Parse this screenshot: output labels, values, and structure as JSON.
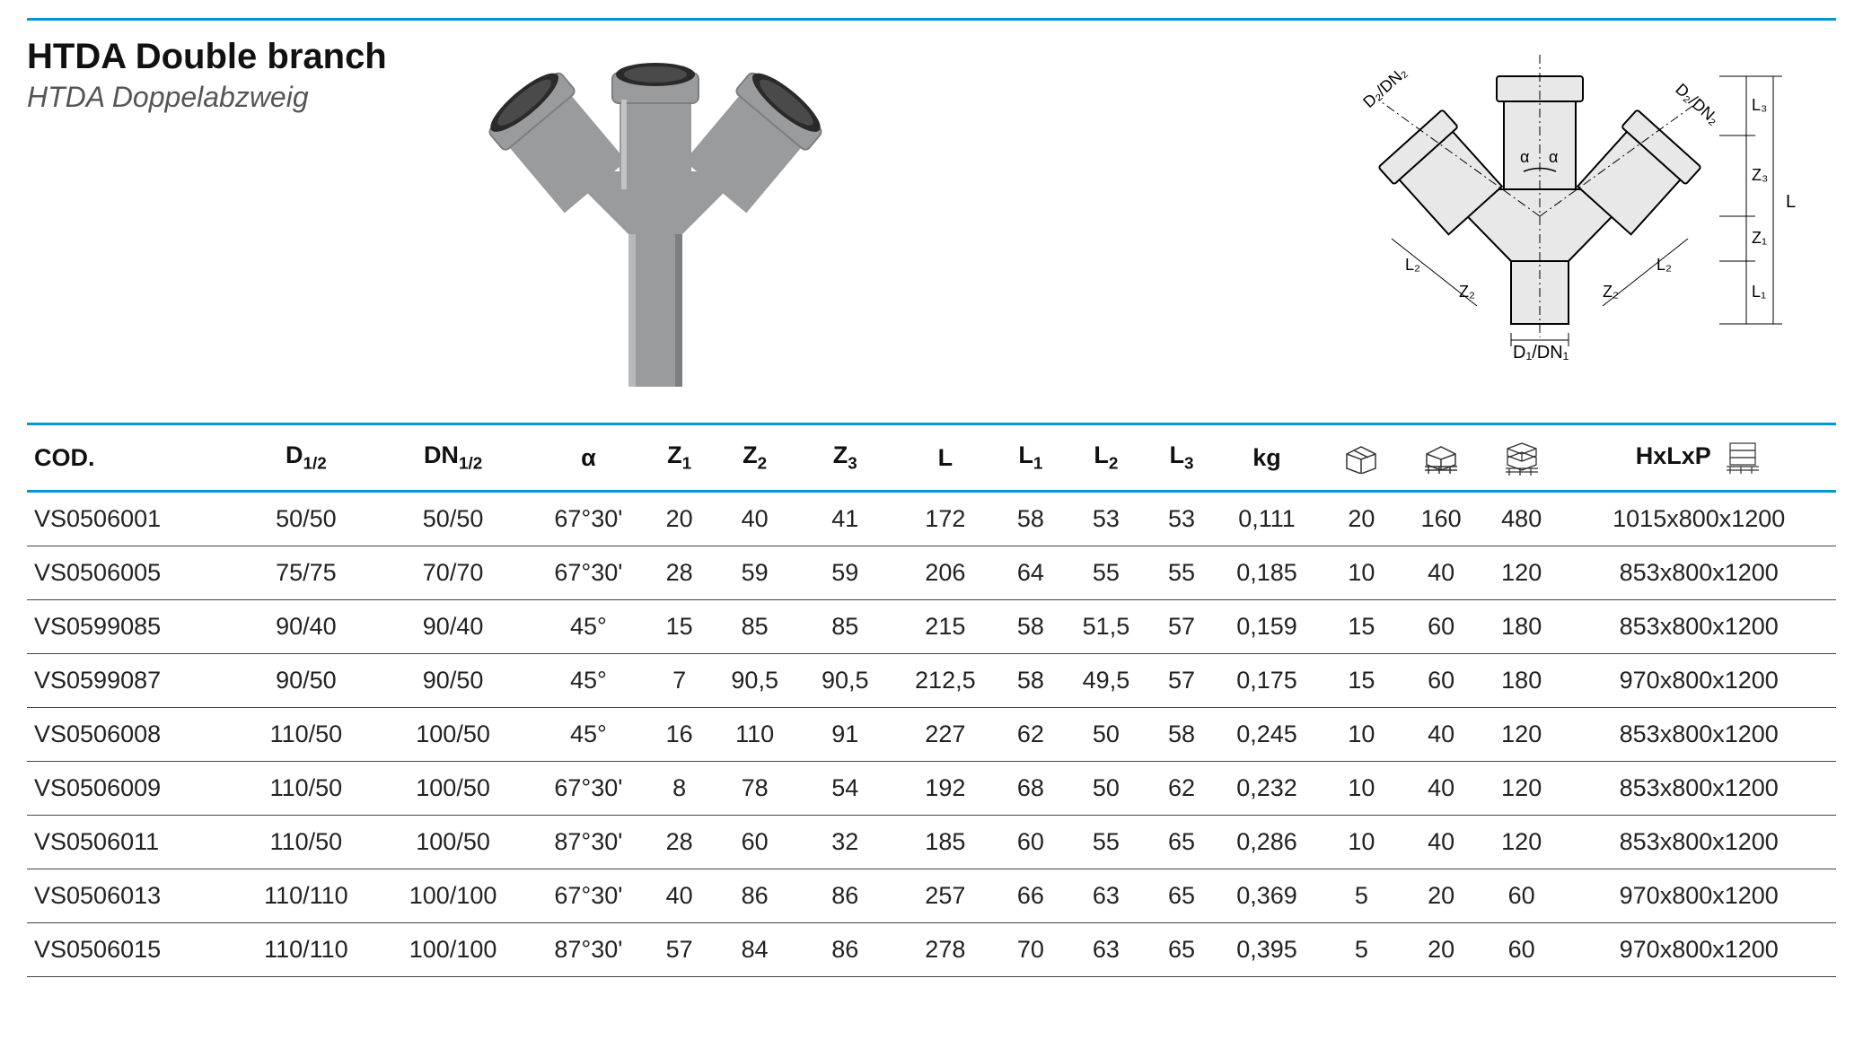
{
  "title_en": "HTDA Double branch",
  "title_de": "HTDA Doppelabzweig",
  "colors": {
    "rule": "#0099d8",
    "pipe_body": "#9a9b9d",
    "pipe_shadow": "#7d7e80",
    "pipe_rim": "#2a2a2a",
    "drawing_fill": "#e8e8e8",
    "drawing_stroke": "#000000"
  },
  "table": {
    "headers": {
      "cod": "COD.",
      "d12": "D",
      "d12_sub": "1/2",
      "dn12": "DN",
      "dn12_sub": "1/2",
      "alpha": "α",
      "z1": "Z",
      "z1_sub": "1",
      "z2": "Z",
      "z2_sub": "2",
      "z3": "Z",
      "z3_sub": "3",
      "l": "L",
      "l1": "L",
      "l1_sub": "1",
      "l2": "L",
      "l2_sub": "2",
      "l3": "L",
      "l3_sub": "3",
      "kg": "kg",
      "hxlxp": "HxLxP"
    },
    "rows": [
      {
        "cod": "VS0506001",
        "d12": "50/50",
        "dn12": "50/50",
        "alpha": "67°30'",
        "z1": "20",
        "z2": "40",
        "z3": "41",
        "l": "172",
        "l1": "58",
        "l2": "53",
        "l3": "53",
        "kg": "0,111",
        "box": "20",
        "pal1": "160",
        "pal2": "480",
        "hxlxp": "1015x800x1200"
      },
      {
        "cod": "VS0506005",
        "d12": "75/75",
        "dn12": "70/70",
        "alpha": "67°30'",
        "z1": "28",
        "z2": "59",
        "z3": "59",
        "l": "206",
        "l1": "64",
        "l2": "55",
        "l3": "55",
        "kg": "0,185",
        "box": "10",
        "pal1": "40",
        "pal2": "120",
        "hxlxp": "853x800x1200"
      },
      {
        "cod": "VS0599085",
        "d12": "90/40",
        "dn12": "90/40",
        "alpha": "45°",
        "z1": "15",
        "z2": "85",
        "z3": "85",
        "l": "215",
        "l1": "58",
        "l2": "51,5",
        "l3": "57",
        "kg": "0,159",
        "box": "15",
        "pal1": "60",
        "pal2": "180",
        "hxlxp": "853x800x1200"
      },
      {
        "cod": "VS0599087",
        "d12": "90/50",
        "dn12": "90/50",
        "alpha": "45°",
        "z1": "7",
        "z2": "90,5",
        "z3": "90,5",
        "l": "212,5",
        "l1": "58",
        "l2": "49,5",
        "l3": "57",
        "kg": "0,175",
        "box": "15",
        "pal1": "60",
        "pal2": "180",
        "hxlxp": "970x800x1200"
      },
      {
        "cod": "VS0506008",
        "d12": "110/50",
        "dn12": "100/50",
        "alpha": "45°",
        "z1": "16",
        "z2": "110",
        "z3": "91",
        "l": "227",
        "l1": "62",
        "l2": "50",
        "l3": "58",
        "kg": "0,245",
        "box": "10",
        "pal1": "40",
        "pal2": "120",
        "hxlxp": "853x800x1200"
      },
      {
        "cod": "VS0506009",
        "d12": "110/50",
        "dn12": "100/50",
        "alpha": "67°30'",
        "z1": "8",
        "z2": "78",
        "z3": "54",
        "l": "192",
        "l1": "68",
        "l2": "50",
        "l3": "62",
        "kg": "0,232",
        "box": "10",
        "pal1": "40",
        "pal2": "120",
        "hxlxp": "853x800x1200"
      },
      {
        "cod": "VS0506011",
        "d12": "110/50",
        "dn12": "100/50",
        "alpha": "87°30'",
        "z1": "28",
        "z2": "60",
        "z3": "32",
        "l": "185",
        "l1": "60",
        "l2": "55",
        "l3": "65",
        "kg": "0,286",
        "box": "10",
        "pal1": "40",
        "pal2": "120",
        "hxlxp": "853x800x1200"
      },
      {
        "cod": "VS0506013",
        "d12": "110/110",
        "dn12": "100/100",
        "alpha": "67°30'",
        "z1": "40",
        "z2": "86",
        "z3": "86",
        "l": "257",
        "l1": "66",
        "l2": "63",
        "l3": "65",
        "kg": "0,369",
        "box": "5",
        "pal1": "20",
        "pal2": "60",
        "hxlxp": "970x800x1200"
      },
      {
        "cod": "VS0506015",
        "d12": "110/110",
        "dn12": "100/100",
        "alpha": "87°30'",
        "z1": "57",
        "z2": "84",
        "z3": "86",
        "l": "278",
        "l1": "70",
        "l2": "63",
        "l3": "65",
        "kg": "0,395",
        "box": "5",
        "pal1": "20",
        "pal2": "60",
        "hxlxp": "970x800x1200"
      }
    ]
  },
  "drawing_labels": {
    "d2dn2_l": "D₂/DN₂",
    "d2dn2_r": "D₂/DN₂",
    "d1dn1": "D₁/DN₁",
    "alpha": "α",
    "l2_l": "L₂",
    "l2_r": "L₂",
    "z2_l": "Z₂",
    "z2_r": "Z₂",
    "l": "L",
    "l1": "L₁",
    "l3": "L₃",
    "z1": "Z₁",
    "z3": "Z₃"
  }
}
